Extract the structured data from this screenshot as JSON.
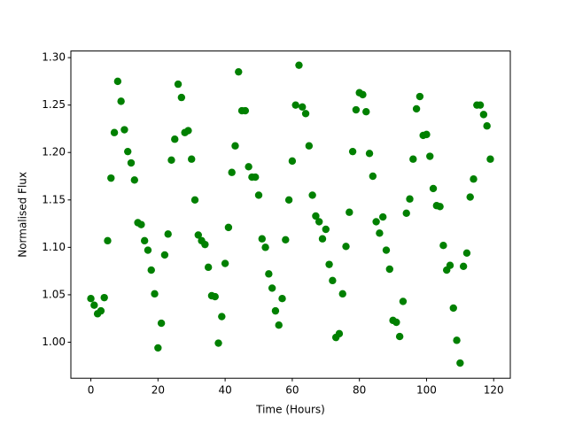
{
  "chart_data": {
    "type": "scatter",
    "x_label": "Time (Hours)",
    "y_label": "Normalised Flux",
    "x": [
      0,
      1,
      2,
      3,
      4,
      5,
      6,
      7,
      8,
      9,
      10,
      11,
      12,
      13,
      14,
      15,
      16,
      17,
      18,
      19,
      20,
      21,
      22,
      23,
      24,
      25,
      26,
      27,
      28,
      29,
      30,
      31,
      32,
      33,
      34,
      35,
      36,
      37,
      38,
      39,
      40,
      41,
      42,
      43,
      44,
      45,
      46,
      47,
      48,
      49,
      50,
      51,
      52,
      53,
      54,
      55,
      56,
      57,
      58,
      59,
      60,
      61,
      62,
      63,
      64,
      65,
      66,
      67,
      68,
      69,
      70,
      71,
      72,
      73,
      74,
      75,
      76,
      77,
      78,
      79,
      80,
      81,
      82,
      83,
      84,
      85,
      86,
      87,
      88,
      89,
      90,
      91,
      92,
      93,
      94,
      95,
      96,
      97,
      98,
      99,
      100,
      101,
      102,
      103,
      104,
      105,
      106,
      107,
      108,
      109,
      110,
      111,
      112,
      113,
      114,
      115,
      116,
      117,
      118,
      119
    ],
    "values": [
      1.046,
      1.039,
      1.03,
      1.033,
      1.047,
      1.107,
      1.173,
      1.221,
      1.275,
      1.254,
      1.224,
      1.201,
      1.189,
      1.171,
      1.126,
      1.124,
      1.107,
      1.097,
      1.076,
      1.051,
      0.994,
      1.02,
      1.092,
      1.114,
      1.192,
      1.214,
      1.272,
      1.258,
      1.221,
      1.223,
      1.193,
      1.15,
      1.113,
      1.107,
      1.103,
      1.079,
      1.049,
      1.048,
      0.999,
      1.027,
      1.083,
      1.121,
      1.179,
      1.207,
      1.285,
      1.244,
      1.244,
      1.185,
      1.174,
      1.174,
      1.155,
      1.109,
      1.1,
      1.072,
      1.057,
      1.033,
      1.018,
      1.046,
      1.108,
      1.15,
      1.191,
      1.25,
      1.292,
      1.248,
      1.241,
      1.207,
      1.155,
      1.133,
      1.127,
      1.109,
      1.119,
      1.082,
      1.065,
      1.005,
      1.009,
      1.051,
      1.101,
      1.137,
      1.201,
      1.245,
      1.263,
      1.261,
      1.243,
      1.199,
      1.175,
      1.127,
      1.115,
      1.132,
      1.097,
      1.077,
      1.023,
      1.021,
      1.006,
      1.043,
      1.136,
      1.151,
      1.193,
      1.246,
      1.259,
      1.218,
      1.219,
      1.196,
      1.162,
      1.144,
      1.143,
      1.102,
      1.076,
      1.081,
      1.036,
      1.002,
      0.978,
      1.08,
      1.094,
      1.153,
      1.172,
      1.25,
      1.25,
      1.24,
      1.228,
      1.193
    ],
    "color": "#008000",
    "xlim": [
      -5.95,
      124.95
    ],
    "ylim": [
      0.962,
      1.307
    ],
    "xticks": [
      0,
      20,
      40,
      60,
      80,
      100,
      120
    ],
    "yticks": [
      {
        "value": 1,
        "label": "1.00"
      },
      1.05,
      {
        "value": 1.1,
        "label": "1.10"
      },
      1.15,
      {
        "value": 1.2,
        "label": "1.20"
      },
      1.25,
      {
        "value": 1.3,
        "label": "1.30"
      }
    ],
    "grid": false
  }
}
